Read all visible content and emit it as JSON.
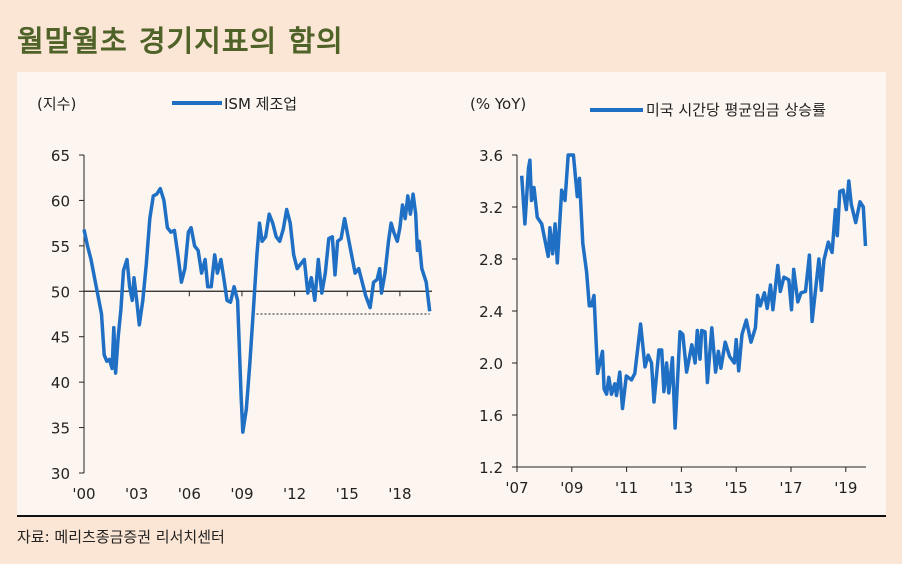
{
  "title": "월말월초 경기지표의 함의",
  "source": "자료: 메리츠종금증권 리서치센터",
  "colors": {
    "series": "#1f6fc5",
    "title": "#4f6228",
    "background": "#fbe5d4",
    "panel": "#fdf6f0"
  },
  "chart_data": [
    {
      "type": "line",
      "ylabel": "(지수)",
      "ylim": [
        30,
        65
      ],
      "yticks": [
        "30",
        "35",
        "40",
        "45",
        "50",
        "55",
        "60",
        "65"
      ],
      "xlim": [
        2000,
        2020
      ],
      "xticks": [
        {
          "x": 2000,
          "label": "'00"
        },
        {
          "x": 2003,
          "label": "'03"
        },
        {
          "x": 2006,
          "label": "'06"
        },
        {
          "x": 2009,
          "label": "'09"
        },
        {
          "x": 2012,
          "label": "'12"
        },
        {
          "x": 2015,
          "label": "'15"
        },
        {
          "x": 2018,
          "label": "'18"
        }
      ],
      "reference_lines": [
        {
          "y": 50,
          "style": "solid",
          "from": 2000,
          "to": 2020
        },
        {
          "y": 47.5,
          "style": "dashed",
          "from": 2009.6,
          "to": 2019.7
        }
      ],
      "legend": "top",
      "grid": false,
      "series": [
        {
          "name": "ISM 제조업",
          "points": [
            [
              2000.0,
              56.8
            ],
            [
              2000.2,
              55
            ],
            [
              2000.4,
              53.5
            ],
            [
              2000.6,
              51.5
            ],
            [
              2000.8,
              49.5
            ],
            [
              2001.0,
              47.5
            ],
            [
              2001.15,
              43
            ],
            [
              2001.3,
              42.3
            ],
            [
              2001.45,
              42.5
            ],
            [
              2001.6,
              41.5
            ],
            [
              2001.7,
              46
            ],
            [
              2001.8,
              41
            ],
            [
              2001.95,
              45
            ],
            [
              2002.1,
              48
            ],
            [
              2002.25,
              52.3
            ],
            [
              2002.45,
              53.5
            ],
            [
              2002.6,
              50.5
            ],
            [
              2002.75,
              49
            ],
            [
              2002.85,
              51.5
            ],
            [
              2003.0,
              49
            ],
            [
              2003.15,
              46.3
            ],
            [
              2003.35,
              49
            ],
            [
              2003.55,
              53
            ],
            [
              2003.75,
              58
            ],
            [
              2003.95,
              60.5
            ],
            [
              2004.15,
              60.7
            ],
            [
              2004.35,
              61.3
            ],
            [
              2004.55,
              60
            ],
            [
              2004.75,
              57
            ],
            [
              2004.95,
              56.5
            ],
            [
              2005.15,
              56.7
            ],
            [
              2005.35,
              54
            ],
            [
              2005.55,
              51
            ],
            [
              2005.75,
              52.5
            ],
            [
              2005.95,
              56.5
            ],
            [
              2006.1,
              57
            ],
            [
              2006.3,
              55
            ],
            [
              2006.5,
              54.5
            ],
            [
              2006.7,
              52
            ],
            [
              2006.9,
              53.5
            ],
            [
              2007.05,
              50.5
            ],
            [
              2007.25,
              50.5
            ],
            [
              2007.45,
              54
            ],
            [
              2007.6,
              52
            ],
            [
              2007.8,
              53.5
            ],
            [
              2008.0,
              51
            ],
            [
              2008.15,
              49
            ],
            [
              2008.35,
              48.8
            ],
            [
              2008.55,
              50.5
            ],
            [
              2008.75,
              49
            ],
            [
              2008.95,
              38.5
            ],
            [
              2009.05,
              34.5
            ],
            [
              2009.25,
              37
            ],
            [
              2009.45,
              42
            ],
            [
              2009.65,
              48
            ],
            [
              2009.85,
              54
            ],
            [
              2010.0,
              57.5
            ],
            [
              2010.15,
              55.5
            ],
            [
              2010.35,
              56
            ],
            [
              2010.55,
              58.5
            ],
            [
              2010.75,
              57.5
            ],
            [
              2010.95,
              56
            ],
            [
              2011.15,
              55.5
            ],
            [
              2011.35,
              56.8
            ],
            [
              2011.55,
              59
            ],
            [
              2011.75,
              57.5
            ],
            [
              2011.95,
              54
            ],
            [
              2012.15,
              52.5
            ],
            [
              2012.35,
              53
            ],
            [
              2012.55,
              53.5
            ],
            [
              2012.75,
              49.8
            ],
            [
              2012.95,
              51.5
            ],
            [
              2013.15,
              49
            ],
            [
              2013.35,
              53.5
            ],
            [
              2013.55,
              49.8
            ],
            [
              2013.75,
              52
            ],
            [
              2013.95,
              55.8
            ],
            [
              2014.15,
              56
            ],
            [
              2014.3,
              51.8
            ],
            [
              2014.45,
              55.5
            ],
            [
              2014.65,
              55.8
            ],
            [
              2014.85,
              58
            ],
            [
              2015.05,
              56
            ],
            [
              2015.25,
              54
            ],
            [
              2015.45,
              52
            ],
            [
              2015.65,
              52.5
            ],
            [
              2015.85,
              51
            ],
            [
              2016.05,
              49.5
            ],
            [
              2016.3,
              48.2
            ],
            [
              2016.5,
              51
            ],
            [
              2016.7,
              51.3
            ],
            [
              2016.85,
              52.5
            ],
            [
              2016.95,
              49.8
            ],
            [
              2017.15,
              52
            ],
            [
              2017.35,
              55.5
            ],
            [
              2017.5,
              57.5
            ],
            [
              2017.65,
              56.5
            ],
            [
              2017.85,
              55.5
            ],
            [
              2018.0,
              57
            ],
            [
              2018.15,
              59.5
            ],
            [
              2018.3,
              58
            ],
            [
              2018.45,
              60.5
            ],
            [
              2018.6,
              58.5
            ],
            [
              2018.75,
              60.7
            ],
            [
              2018.9,
              58.5
            ],
            [
              2019.0,
              54.5
            ],
            [
              2019.1,
              55.5
            ],
            [
              2019.25,
              52.5
            ],
            [
              2019.5,
              51
            ],
            [
              2019.7,
              47.8
            ]
          ]
        }
      ]
    },
    {
      "type": "line",
      "ylabel": "(% YoY)",
      "ylim": [
        1.2,
        3.6
      ],
      "yticks": [
        "1.2",
        "1.6",
        "2.0",
        "2.4",
        "2.8",
        "3.2",
        "3.6"
      ],
      "xlim": [
        2007,
        2020
      ],
      "xticks": [
        {
          "x": 2007,
          "label": "'07"
        },
        {
          "x": 2009,
          "label": "'09"
        },
        {
          "x": 2011,
          "label": "'11"
        },
        {
          "x": 2013,
          "label": "'13"
        },
        {
          "x": 2015,
          "label": "'15"
        },
        {
          "x": 2017,
          "label": "'17"
        },
        {
          "x": 2019,
          "label": "'19"
        }
      ],
      "legend": "top",
      "grid": false,
      "series": [
        {
          "name": "미국 시간당 평균임금 상승률",
          "points": [
            [
              2007.17,
              3.44
            ],
            [
              2007.29,
              3.07
            ],
            [
              2007.42,
              3.5
            ],
            [
              2007.47,
              3.56
            ],
            [
              2007.53,
              3.25
            ],
            [
              2007.62,
              3.35
            ],
            [
              2007.74,
              3.12
            ],
            [
              2007.9,
              3.07
            ],
            [
              2008.14,
              2.82
            ],
            [
              2008.2,
              3.04
            ],
            [
              2008.3,
              2.84
            ],
            [
              2008.39,
              3.07
            ],
            [
              2008.47,
              2.77
            ],
            [
              2008.63,
              3.33
            ],
            [
              2008.75,
              3.25
            ],
            [
              2008.87,
              3.6
            ],
            [
              2009.06,
              3.6
            ],
            [
              2009.2,
              3.28
            ],
            [
              2009.28,
              3.42
            ],
            [
              2009.4,
              2.92
            ],
            [
              2009.54,
              2.7
            ],
            [
              2009.64,
              2.44
            ],
            [
              2009.72,
              2.44
            ],
            [
              2009.81,
              2.52
            ],
            [
              2009.88,
              2.2
            ],
            [
              2009.94,
              1.92
            ],
            [
              2010.12,
              2.09
            ],
            [
              2010.18,
              1.8
            ],
            [
              2010.27,
              1.76
            ],
            [
              2010.35,
              1.89
            ],
            [
              2010.45,
              1.76
            ],
            [
              2010.57,
              1.84
            ],
            [
              2010.63,
              1.75
            ],
            [
              2010.75,
              1.93
            ],
            [
              2010.85,
              1.65
            ],
            [
              2010.99,
              1.9
            ],
            [
              2011.18,
              1.87
            ],
            [
              2011.3,
              1.92
            ],
            [
              2011.51,
              2.3
            ],
            [
              2011.67,
              1.97
            ],
            [
              2011.79,
              2.06
            ],
            [
              2011.91,
              2.0
            ],
            [
              2012.0,
              1.7
            ],
            [
              2012.18,
              2.1
            ],
            [
              2012.28,
              2.1
            ],
            [
              2012.36,
              1.78
            ],
            [
              2012.46,
              2.0
            ],
            [
              2012.54,
              1.77
            ],
            [
              2012.67,
              2.04
            ],
            [
              2012.77,
              1.5
            ],
            [
              2012.95,
              2.24
            ],
            [
              2013.05,
              2.22
            ],
            [
              2013.19,
              1.93
            ],
            [
              2013.38,
              2.14
            ],
            [
              2013.5,
              2.0
            ],
            [
              2013.58,
              2.25
            ],
            [
              2013.68,
              2.03
            ],
            [
              2013.74,
              2.25
            ],
            [
              2013.86,
              2.24
            ],
            [
              2013.95,
              1.85
            ],
            [
              2014.11,
              2.27
            ],
            [
              2014.25,
              1.93
            ],
            [
              2014.35,
              2.09
            ],
            [
              2014.44,
              1.96
            ],
            [
              2014.6,
              2.16
            ],
            [
              2014.76,
              2.05
            ],
            [
              2014.93,
              2.0
            ],
            [
              2015.0,
              2.18
            ],
            [
              2015.09,
              1.94
            ],
            [
              2015.21,
              2.22
            ],
            [
              2015.37,
              2.33
            ],
            [
              2015.54,
              2.16
            ],
            [
              2015.7,
              2.27
            ],
            [
              2015.78,
              2.52
            ],
            [
              2015.88,
              2.44
            ],
            [
              2016.03,
              2.54
            ],
            [
              2016.13,
              2.42
            ],
            [
              2016.25,
              2.6
            ],
            [
              2016.34,
              2.41
            ],
            [
              2016.52,
              2.75
            ],
            [
              2016.61,
              2.55
            ],
            [
              2016.74,
              2.66
            ],
            [
              2016.92,
              2.64
            ],
            [
              2017.02,
              2.41
            ],
            [
              2017.1,
              2.72
            ],
            [
              2017.25,
              2.47
            ],
            [
              2017.37,
              2.54
            ],
            [
              2017.53,
              2.55
            ],
            [
              2017.67,
              2.83
            ],
            [
              2017.77,
              2.32
            ],
            [
              2018.02,
              2.8
            ],
            [
              2018.11,
              2.56
            ],
            [
              2018.2,
              2.79
            ],
            [
              2018.36,
              2.93
            ],
            [
              2018.5,
              2.85
            ],
            [
              2018.62,
              3.18
            ],
            [
              2018.69,
              2.98
            ],
            [
              2018.78,
              3.32
            ],
            [
              2018.9,
              3.33
            ],
            [
              2019.02,
              3.18
            ],
            [
              2019.11,
              3.4
            ],
            [
              2019.2,
              3.22
            ],
            [
              2019.36,
              3.08
            ],
            [
              2019.52,
              3.24
            ],
            [
              2019.64,
              3.2
            ],
            [
              2019.72,
              2.9
            ]
          ]
        }
      ]
    }
  ]
}
